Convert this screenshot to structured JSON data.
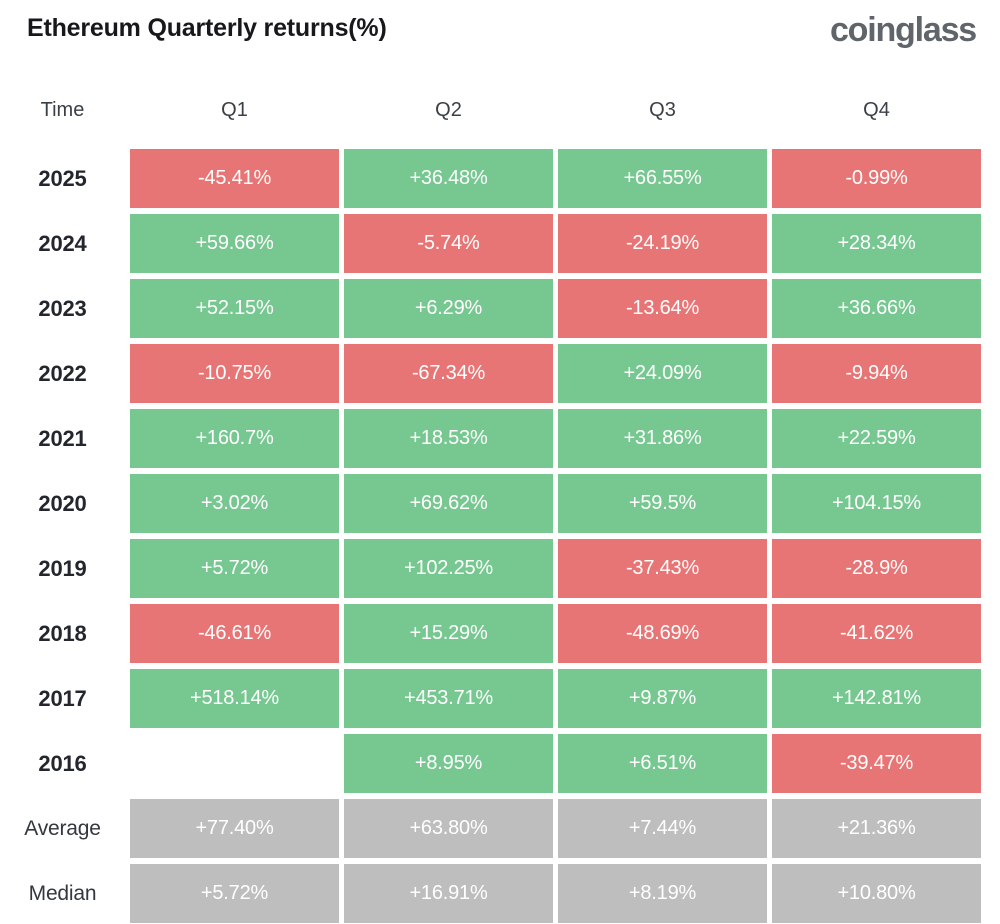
{
  "page": {
    "title": "Ethereum Quarterly returns(%)",
    "brand": "coinglass"
  },
  "colors": {
    "positive": "#77C791",
    "negative": "#E87575",
    "neutral": "#BEBEBE"
  },
  "table": {
    "columns": [
      "Time",
      "Q1",
      "Q2",
      "Q3",
      "Q4"
    ],
    "rows": [
      {
        "label": "2025",
        "summary": false,
        "cells": [
          {
            "value": "-45.41%",
            "type": "negative"
          },
          {
            "value": "+36.48%",
            "type": "positive"
          },
          {
            "value": "+66.55%",
            "type": "positive"
          },
          {
            "value": "-0.99%",
            "type": "negative"
          }
        ]
      },
      {
        "label": "2024",
        "summary": false,
        "cells": [
          {
            "value": "+59.66%",
            "type": "positive"
          },
          {
            "value": "-5.74%",
            "type": "negative"
          },
          {
            "value": "-24.19%",
            "type": "negative"
          },
          {
            "value": "+28.34%",
            "type": "positive"
          }
        ]
      },
      {
        "label": "2023",
        "summary": false,
        "cells": [
          {
            "value": "+52.15%",
            "type": "positive"
          },
          {
            "value": "+6.29%",
            "type": "positive"
          },
          {
            "value": "-13.64%",
            "type": "negative"
          },
          {
            "value": "+36.66%",
            "type": "positive"
          }
        ]
      },
      {
        "label": "2022",
        "summary": false,
        "cells": [
          {
            "value": "-10.75%",
            "type": "negative"
          },
          {
            "value": "-67.34%",
            "type": "negative"
          },
          {
            "value": "+24.09%",
            "type": "positive"
          },
          {
            "value": "-9.94%",
            "type": "negative"
          }
        ]
      },
      {
        "label": "2021",
        "summary": false,
        "cells": [
          {
            "value": "+160.7%",
            "type": "positive"
          },
          {
            "value": "+18.53%",
            "type": "positive"
          },
          {
            "value": "+31.86%",
            "type": "positive"
          },
          {
            "value": "+22.59%",
            "type": "positive"
          }
        ]
      },
      {
        "label": "2020",
        "summary": false,
        "cells": [
          {
            "value": "+3.02%",
            "type": "positive"
          },
          {
            "value": "+69.62%",
            "type": "positive"
          },
          {
            "value": "+59.5%",
            "type": "positive"
          },
          {
            "value": "+104.15%",
            "type": "positive"
          }
        ]
      },
      {
        "label": "2019",
        "summary": false,
        "cells": [
          {
            "value": "+5.72%",
            "type": "positive"
          },
          {
            "value": "+102.25%",
            "type": "positive"
          },
          {
            "value": "-37.43%",
            "type": "negative"
          },
          {
            "value": "-28.9%",
            "type": "negative"
          }
        ]
      },
      {
        "label": "2018",
        "summary": false,
        "cells": [
          {
            "value": "-46.61%",
            "type": "negative"
          },
          {
            "value": "+15.29%",
            "type": "positive"
          },
          {
            "value": "-48.69%",
            "type": "negative"
          },
          {
            "value": "-41.62%",
            "type": "negative"
          }
        ]
      },
      {
        "label": "2017",
        "summary": false,
        "cells": [
          {
            "value": "+518.14%",
            "type": "positive"
          },
          {
            "value": "+453.71%",
            "type": "positive"
          },
          {
            "value": "+9.87%",
            "type": "positive"
          },
          {
            "value": "+142.81%",
            "type": "positive"
          }
        ]
      },
      {
        "label": "2016",
        "summary": false,
        "cells": [
          {
            "value": "",
            "type": "empty"
          },
          {
            "value": "+8.95%",
            "type": "positive"
          },
          {
            "value": "+6.51%",
            "type": "positive"
          },
          {
            "value": "-39.47%",
            "type": "negative"
          }
        ]
      },
      {
        "label": "Average",
        "summary": true,
        "cells": [
          {
            "value": "+77.40%",
            "type": "neutral"
          },
          {
            "value": "+63.80%",
            "type": "neutral"
          },
          {
            "value": "+7.44%",
            "type": "neutral"
          },
          {
            "value": "+21.36%",
            "type": "neutral"
          }
        ]
      },
      {
        "label": "Median",
        "summary": true,
        "cells": [
          {
            "value": "+5.72%",
            "type": "neutral"
          },
          {
            "value": "+16.91%",
            "type": "neutral"
          },
          {
            "value": "+8.19%",
            "type": "neutral"
          },
          {
            "value": "+10.80%",
            "type": "neutral"
          }
        ]
      }
    ]
  },
  "chart_data": {
    "type": "heatmap",
    "title": "Ethereum Quarterly returns(%)",
    "columns": [
      "Q1",
      "Q2",
      "Q3",
      "Q4"
    ],
    "rows": [
      "2025",
      "2024",
      "2023",
      "2022",
      "2021",
      "2020",
      "2019",
      "2018",
      "2017",
      "2016",
      "Average",
      "Median"
    ],
    "values": [
      [
        -45.41,
        36.48,
        66.55,
        -0.99
      ],
      [
        59.66,
        -5.74,
        -24.19,
        28.34
      ],
      [
        52.15,
        6.29,
        -13.64,
        36.66
      ],
      [
        -10.75,
        -67.34,
        24.09,
        -9.94
      ],
      [
        160.7,
        18.53,
        31.86,
        22.59
      ],
      [
        3.02,
        69.62,
        59.5,
        104.15
      ],
      [
        5.72,
        102.25,
        -37.43,
        -28.9
      ],
      [
        -46.61,
        15.29,
        -48.69,
        -41.62
      ],
      [
        518.14,
        453.71,
        9.87,
        142.81
      ],
      [
        null,
        8.95,
        6.51,
        -39.47
      ],
      [
        77.4,
        63.8,
        7.44,
        21.36
      ],
      [
        5.72,
        16.91,
        8.19,
        10.8
      ]
    ],
    "unit": "%",
    "color_coding": {
      "positive": "#77C791",
      "negative": "#E87575",
      "summary_rows": "#BEBEBE"
    },
    "layout": "years as rows descending, quarters as columns, summary rows (Average, Median) at bottom"
  }
}
